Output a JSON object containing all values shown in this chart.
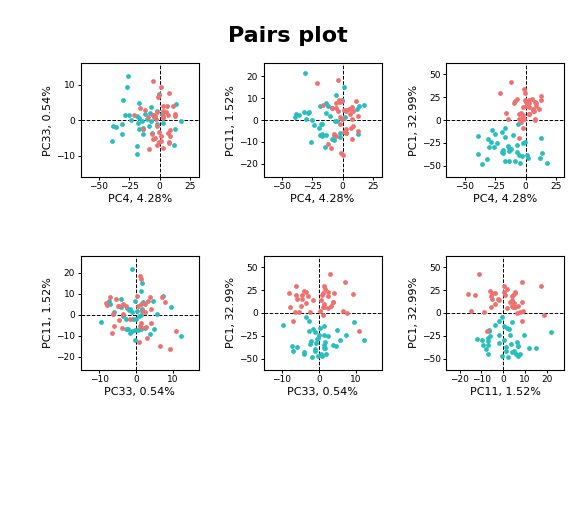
{
  "title": "Pairs plot",
  "title_fontsize": 16,
  "title_fontweight": "bold",
  "background_color": "#ffffff",
  "point_color_1": "#26bfbf",
  "point_color_2": "#f07070",
  "point_size": 12,
  "point_alpha": 1.0,
  "subplots": [
    {
      "row": 0,
      "col": 0,
      "xlabel": "PC4, 4.28%",
      "ylabel": "PC33, 0.54%",
      "xlim": [
        -65,
        32
      ],
      "ylim": [
        -16,
        16
      ],
      "xticks": [
        -50,
        -25,
        0,
        25
      ],
      "yticks": [
        -10,
        0,
        10
      ],
      "hline": 0,
      "vline": 0
    },
    {
      "row": 0,
      "col": 1,
      "xlabel": "PC4, 4.28%",
      "ylabel": "PC11, 1.52%",
      "xlim": [
        -65,
        32
      ],
      "ylim": [
        -26,
        26
      ],
      "xticks": [
        -50,
        -25,
        0,
        25
      ],
      "yticks": [
        -20,
        -10,
        0,
        10,
        20
      ],
      "hline": 0,
      "vline": 0
    },
    {
      "row": 0,
      "col": 2,
      "xlabel": "PC4, 4.28%",
      "ylabel": "PC1, 32.99%",
      "xlim": [
        -65,
        32
      ],
      "ylim": [
        -62,
        62
      ],
      "xticks": [
        -50,
        -25,
        0,
        25
      ],
      "yticks": [
        -50,
        -25,
        0,
        25,
        50
      ],
      "hline": 0,
      "vline": 0
    },
    {
      "row": 1,
      "col": 0,
      "xlabel": "PC33, 0.54%",
      "ylabel": "PC11, 1.52%",
      "xlim": [
        -15,
        17
      ],
      "ylim": [
        -26,
        28
      ],
      "xticks": [
        -10,
        0,
        10
      ],
      "yticks": [
        -20,
        -10,
        0,
        10,
        20
      ],
      "hline": 0,
      "vline": 0
    },
    {
      "row": 1,
      "col": 1,
      "xlabel": "PC33, 0.54%",
      "ylabel": "PC1, 32.99%",
      "xlim": [
        -15,
        17
      ],
      "ylim": [
        -62,
        62
      ],
      "xticks": [
        -10,
        0,
        10
      ],
      "yticks": [
        -50,
        -25,
        0,
        25,
        50
      ],
      "hline": 0,
      "vline": 0
    },
    {
      "row": 1,
      "col": 2,
      "xlabel": "PC11, 1.52%",
      "ylabel": "PC1, 32.99%",
      "xlim": [
        -26,
        28
      ],
      "ylim": [
        -62,
        62
      ],
      "xticks": [
        -20,
        -10,
        0,
        10,
        20
      ],
      "yticks": [
        -50,
        -25,
        0,
        25,
        50
      ],
      "hline": 0,
      "vline": 0
    }
  ],
  "seed": 42,
  "n_points": 80
}
